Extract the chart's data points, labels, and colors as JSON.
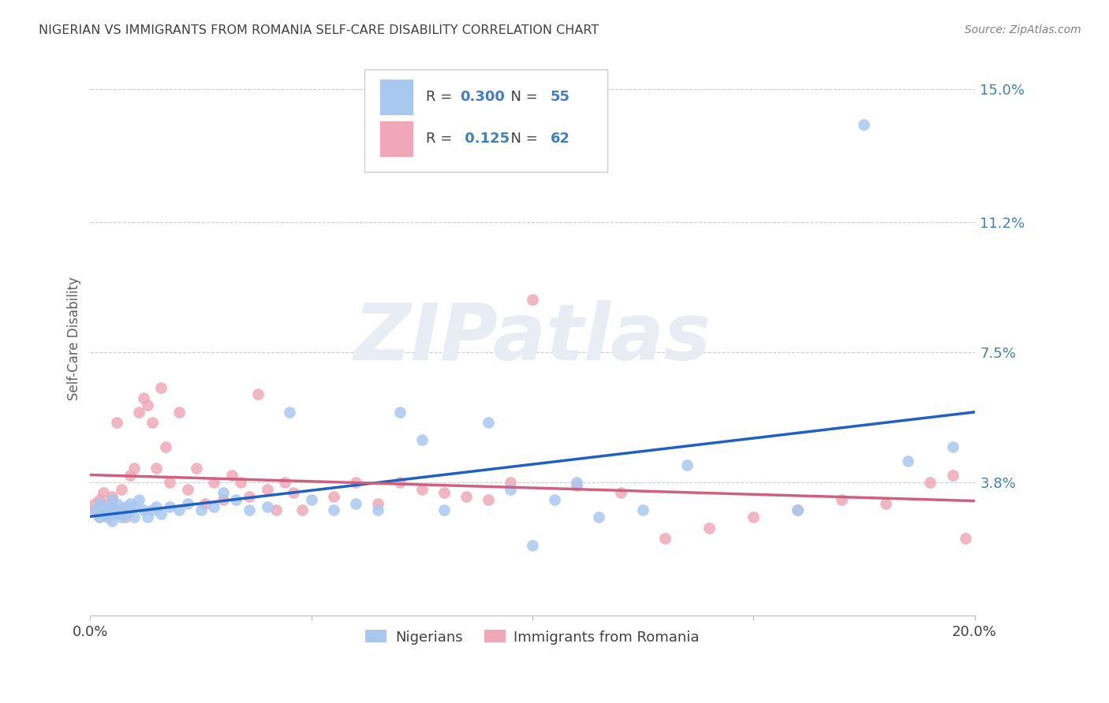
{
  "title": "NIGERIAN VS IMMIGRANTS FROM ROMANIA SELF-CARE DISABILITY CORRELATION CHART",
  "source": "Source: ZipAtlas.com",
  "ylabel": "Self-Care Disability",
  "xlim": [
    0.0,
    0.2
  ],
  "ylim": [
    0.0,
    0.158
  ],
  "yticks": [
    0.038,
    0.075,
    0.112,
    0.15
  ],
  "ytick_labels": [
    "3.8%",
    "7.5%",
    "11.2%",
    "15.0%"
  ],
  "xticks": [
    0.0,
    0.05,
    0.1,
    0.15,
    0.2
  ],
  "xtick_labels": [
    "0.0%",
    "",
    "",
    "",
    "20.0%"
  ],
  "nigerian_R": 0.3,
  "nigerian_N": 55,
  "romanian_R": 0.125,
  "romanian_N": 62,
  "nigerian_color": "#A8C8F0",
  "romanian_color": "#F0A8B8",
  "nigerian_line_color": "#2060C0",
  "romanian_line_color": "#D06080",
  "background_color": "#FFFFFF",
  "grid_color": "#CCCCCC",
  "title_color": "#404040",
  "source_color": "#808080",
  "ylabel_color": "#606060",
  "ytick_color": "#4080C0",
  "xtick_color": "#404040",
  "legend_text_color": "#404040",
  "legend_RN_color": "#4080C0",
  "watermark_color": "#E8ECF4",
  "nigerian_x": [
    0.001,
    0.002,
    0.002,
    0.003,
    0.003,
    0.004,
    0.004,
    0.005,
    0.005,
    0.005,
    0.006,
    0.006,
    0.007,
    0.007,
    0.008,
    0.008,
    0.009,
    0.009,
    0.01,
    0.01,
    0.011,
    0.012,
    0.013,
    0.014,
    0.015,
    0.016,
    0.018,
    0.02,
    0.022,
    0.025,
    0.028,
    0.03,
    0.033,
    0.036,
    0.04,
    0.045,
    0.05,
    0.055,
    0.06,
    0.065,
    0.07,
    0.075,
    0.08,
    0.09,
    0.095,
    0.1,
    0.105,
    0.11,
    0.115,
    0.125,
    0.135,
    0.16,
    0.175,
    0.185,
    0.195
  ],
  "nigerian_y": [
    0.03,
    0.028,
    0.032,
    0.029,
    0.031,
    0.028,
    0.03,
    0.027,
    0.031,
    0.033,
    0.029,
    0.032,
    0.028,
    0.03,
    0.031,
    0.029,
    0.03,
    0.032,
    0.031,
    0.028,
    0.033,
    0.03,
    0.028,
    0.03,
    0.031,
    0.029,
    0.031,
    0.03,
    0.032,
    0.03,
    0.031,
    0.035,
    0.033,
    0.03,
    0.031,
    0.058,
    0.033,
    0.03,
    0.032,
    0.03,
    0.058,
    0.05,
    0.03,
    0.055,
    0.036,
    0.02,
    0.033,
    0.038,
    0.028,
    0.03,
    0.043,
    0.03,
    0.14,
    0.044,
    0.048
  ],
  "romanian_x": [
    0.001,
    0.001,
    0.002,
    0.002,
    0.003,
    0.003,
    0.004,
    0.004,
    0.005,
    0.005,
    0.005,
    0.006,
    0.006,
    0.007,
    0.007,
    0.008,
    0.009,
    0.01,
    0.011,
    0.012,
    0.013,
    0.014,
    0.015,
    0.016,
    0.017,
    0.018,
    0.02,
    0.022,
    0.024,
    0.026,
    0.028,
    0.03,
    0.032,
    0.034,
    0.036,
    0.038,
    0.04,
    0.042,
    0.044,
    0.046,
    0.048,
    0.055,
    0.06,
    0.065,
    0.07,
    0.075,
    0.08,
    0.085,
    0.09,
    0.095,
    0.1,
    0.11,
    0.12,
    0.13,
    0.14,
    0.15,
    0.16,
    0.17,
    0.18,
    0.19,
    0.195,
    0.198
  ],
  "romanian_y": [
    0.03,
    0.032,
    0.028,
    0.033,
    0.029,
    0.035,
    0.028,
    0.032,
    0.03,
    0.034,
    0.033,
    0.029,
    0.055,
    0.03,
    0.036,
    0.028,
    0.04,
    0.042,
    0.058,
    0.062,
    0.06,
    0.055,
    0.042,
    0.065,
    0.048,
    0.038,
    0.058,
    0.036,
    0.042,
    0.032,
    0.038,
    0.033,
    0.04,
    0.038,
    0.034,
    0.063,
    0.036,
    0.03,
    0.038,
    0.035,
    0.03,
    0.034,
    0.038,
    0.032,
    0.038,
    0.036,
    0.035,
    0.034,
    0.033,
    0.038,
    0.09,
    0.037,
    0.035,
    0.022,
    0.025,
    0.028,
    0.03,
    0.033,
    0.032,
    0.038,
    0.04,
    0.022
  ]
}
